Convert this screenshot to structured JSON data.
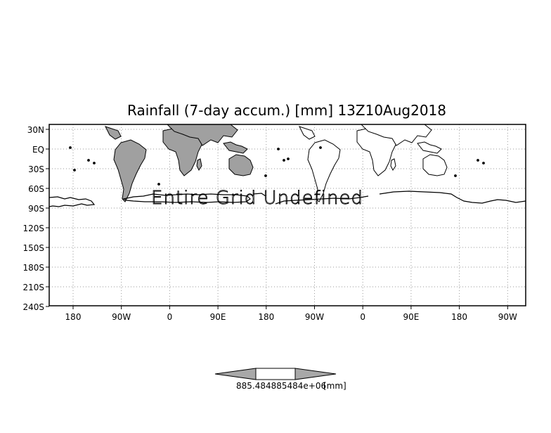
{
  "title": "Rainfall (7-day accum.) [mm] 13Z10Aug2018",
  "overlay_message": "Entire Grid Undefined",
  "y_axis_labels": [
    "30N",
    "EQ",
    "30S",
    "60S",
    "90S",
    "120S",
    "150S",
    "180S",
    "210S",
    "240S"
  ],
  "x_axis_labels": [
    "180",
    "90W",
    "0",
    "90E",
    "180",
    "90W",
    "0",
    "90E",
    "180",
    "90W"
  ],
  "colorbar": {
    "label_overlapped": "885.484885484e+06",
    "unit": "[mm]"
  },
  "colors": {
    "land_fill": "#a0a0a0",
    "coastline": "#000000",
    "grid": "#9a9a9a",
    "background": "#ffffff"
  }
}
